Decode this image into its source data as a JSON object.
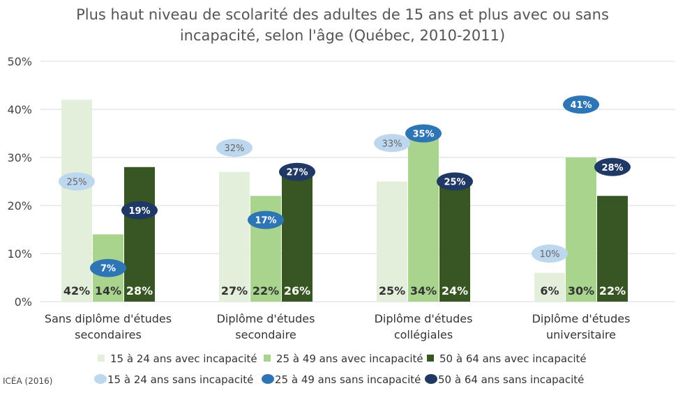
{
  "title_lines": [
    "Plus haut niveau de scolarité des adultes de 15 ans et plus avec ou sans",
    "incapacité, selon l'âge (Québec, 2010-2011)"
  ],
  "source": "ICÉA (2016)",
  "chart_data": {
    "type": "bar",
    "categories": [
      [
        "Sans diplôme d'études",
        "secondaires"
      ],
      [
        "Diplôme d'études",
        "secondaire"
      ],
      [
        "Diplôme d'études",
        "collégiales"
      ],
      [
        "Diplôme d'études",
        "universitaire"
      ]
    ],
    "y_ticks": [
      "0%",
      "10%",
      "20%",
      "30%",
      "40%",
      "50%"
    ],
    "ylim": [
      0,
      50
    ],
    "grid": true,
    "legend_position": "bottom",
    "bar_series": [
      {
        "name": "15 à 24 ans avec incapacité",
        "color": "#e3efda",
        "values": [
          42,
          27,
          25,
          6
        ],
        "labels": [
          "42%",
          "27%",
          "25%",
          "6%"
        ],
        "label_color": "#333333"
      },
      {
        "name": "25 à 49 ans avec incapacité",
        "color": "#a8d48e",
        "values": [
          14,
          22,
          34,
          30
        ],
        "labels": [
          "14%",
          "22%",
          "34%",
          "30%"
        ],
        "label_color": "#333333"
      },
      {
        "name": "50 à 64 ans avec incapacité",
        "color": "#375623",
        "values": [
          28,
          26,
          24,
          22
        ],
        "labels": [
          "28%",
          "26%",
          "24%",
          "22%"
        ],
        "label_color": "#ffffff"
      }
    ],
    "marker_series": [
      {
        "name": "15 à 24 ans sans incapacité",
        "color": "#bdd7ee",
        "values": [
          25,
          32,
          33,
          10
        ],
        "labels": [
          "25%",
          "32%",
          "33%",
          "10%"
        ],
        "label_color": "#666666"
      },
      {
        "name": "25 à 49 ans sans incapacité",
        "color": "#2e75b6",
        "values": [
          7,
          17,
          35,
          41
        ],
        "labels": [
          "7%",
          "17%",
          "35%",
          "41%"
        ],
        "label_color": "#ffffff"
      },
      {
        "name": "50 à 64 ans sans incapacité",
        "color": "#1f3864",
        "values": [
          19,
          27,
          25,
          28
        ],
        "labels": [
          "19%",
          "27%",
          "25%",
          "28%"
        ],
        "label_color": "#ffffff"
      }
    ]
  }
}
